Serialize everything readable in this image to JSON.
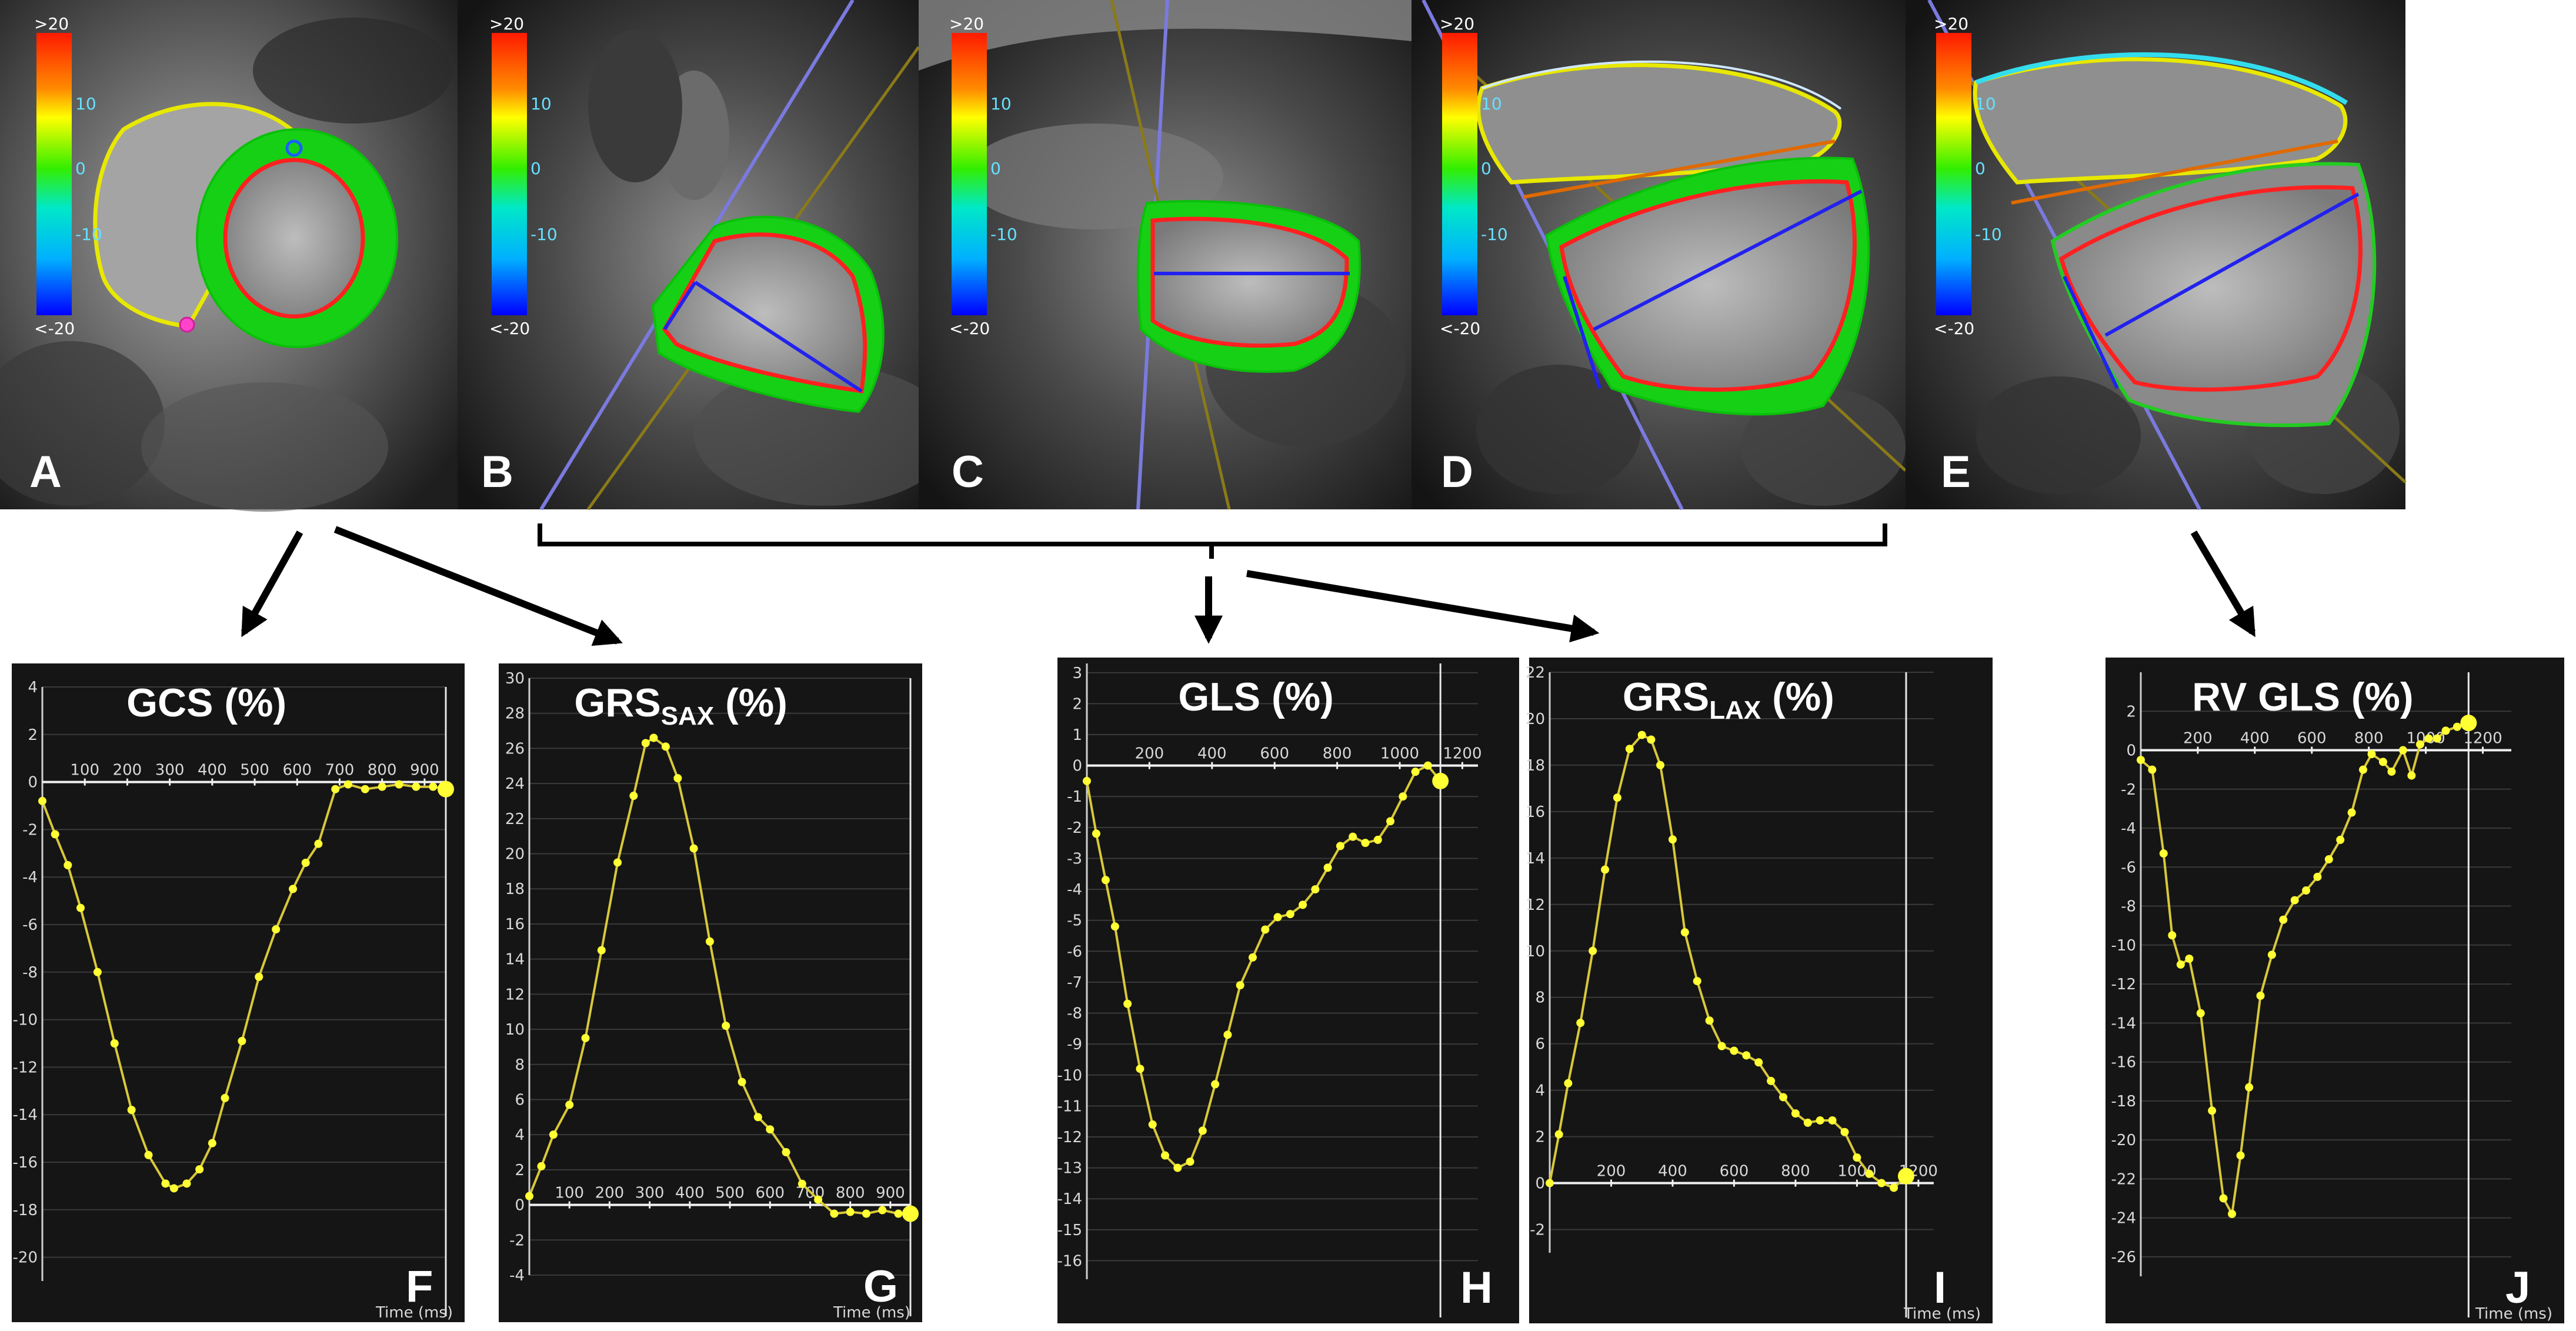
{
  "colorbar": {
    "top": ">20",
    "p10": "10",
    "zero": "0",
    "n10": "-10",
    "bottom": "<-20"
  },
  "panels": [
    {
      "letter": "A"
    },
    {
      "letter": "B"
    },
    {
      "letter": "C"
    },
    {
      "letter": "D"
    },
    {
      "letter": "E"
    }
  ],
  "colors": {
    "curve": "#d8c83a",
    "point": "#ffff33",
    "background": "#151515",
    "grid": "#3a3a3a",
    "arrow": "#000000"
  },
  "time_label": "Time (ms)",
  "chart_data": [
    {
      "type": "line",
      "letter": "F",
      "title": "GCS (%)",
      "title_sub": "",
      "xlabel": "Time (ms)",
      "xlim": [
        0,
        950
      ],
      "ylim": [
        -21,
        4
      ],
      "xticks": [
        100,
        200,
        300,
        400,
        500,
        600,
        700,
        800,
        900
      ],
      "yticks": [
        4,
        2,
        0,
        -2,
        -4,
        -6,
        -8,
        -10,
        -12,
        -14,
        -16,
        -18,
        -20
      ],
      "x": [
        0,
        30,
        60,
        90,
        130,
        170,
        210,
        250,
        290,
        310,
        340,
        370,
        400,
        430,
        470,
        510,
        550,
        590,
        620,
        650,
        690,
        720,
        760,
        800,
        840,
        880,
        920,
        950
      ],
      "y": [
        -0.8,
        -2.2,
        -3.5,
        -5.3,
        -8,
        -11,
        -13.8,
        -15.7,
        -16.9,
        -17.1,
        -16.9,
        -16.3,
        -15.2,
        -13.3,
        -10.9,
        -8.2,
        -6.2,
        -4.5,
        -3.4,
        -2.6,
        -0.3,
        -0.1,
        -0.3,
        -0.2,
        -0.1,
        -0.2,
        -0.2,
        -0.3
      ]
    },
    {
      "type": "line",
      "letter": "G",
      "title": "GRS",
      "title_sub": "SAX",
      "title_suffix": " (%)",
      "xlabel": "Time (ms)",
      "xlim": [
        0,
        950
      ],
      "ylim": [
        -4,
        30
      ],
      "xticks": [
        100,
        200,
        300,
        400,
        500,
        600,
        700,
        800,
        900
      ],
      "yticks": [
        30,
        28,
        26,
        24,
        22,
        20,
        18,
        16,
        14,
        12,
        10,
        8,
        6,
        4,
        2,
        0,
        -2,
        -4
      ],
      "x": [
        0,
        30,
        60,
        100,
        140,
        180,
        220,
        260,
        290,
        310,
        340,
        370,
        410,
        450,
        490,
        530,
        570,
        600,
        640,
        680,
        720,
        760,
        800,
        840,
        880,
        920,
        950
      ],
      "y": [
        0.5,
        2.2,
        4,
        5.7,
        9.5,
        14.5,
        19.5,
        23.3,
        26.3,
        26.6,
        26.1,
        24.3,
        20.3,
        15,
        10.2,
        7,
        5,
        4.3,
        3,
        1.2,
        0.3,
        -0.5,
        -0.4,
        -0.5,
        -0.3,
        -0.5,
        -0.5
      ]
    },
    {
      "type": "line",
      "letter": "H",
      "title": "GLS (%)",
      "title_sub": "",
      "xlabel": "",
      "xlim": [
        0,
        1250
      ],
      "ylim": [
        -16.6,
        3.3
      ],
      "xticks": [
        200,
        400,
        600,
        800,
        1000,
        1200
      ],
      "yticks": [
        3,
        2,
        1,
        0,
        -1,
        -2,
        -3,
        -4,
        -5,
        -6,
        -7,
        -8,
        -9,
        -10,
        -11,
        -12,
        -13,
        -14,
        -15,
        -16
      ],
      "x": [
        0,
        30,
        60,
        90,
        130,
        170,
        210,
        250,
        290,
        330,
        370,
        410,
        450,
        490,
        530,
        570,
        610,
        650,
        690,
        730,
        770,
        810,
        850,
        890,
        930,
        970,
        1010,
        1050,
        1090,
        1130
      ],
      "y": [
        -0.5,
        -2.2,
        -3.7,
        -5.2,
        -7.7,
        -9.8,
        -11.6,
        -12.6,
        -13,
        -12.8,
        -11.8,
        -10.3,
        -8.7,
        -7.1,
        -6.2,
        -5.3,
        -4.9,
        -4.8,
        -4.5,
        -4,
        -3.3,
        -2.6,
        -2.3,
        -2.5,
        -2.4,
        -1.8,
        -1,
        -0.2,
        0,
        -0.5
      ]
    },
    {
      "type": "line",
      "letter": "I",
      "title": "GRS",
      "title_sub": "LAX",
      "title_suffix": " (%)",
      "xlabel": "Time (ms)",
      "xlim": [
        0,
        1250
      ],
      "ylim": [
        -3,
        22
      ],
      "xticks": [
        200,
        400,
        600,
        800,
        1000,
        1200
      ],
      "yticks": [
        22,
        20,
        18,
        16,
        14,
        12,
        10,
        8,
        6,
        4,
        2,
        0,
        -2
      ],
      "x": [
        0,
        30,
        60,
        100,
        140,
        180,
        220,
        260,
        300,
        330,
        360,
        400,
        440,
        480,
        520,
        560,
        600,
        640,
        680,
        720,
        760,
        800,
        840,
        880,
        920,
        960,
        1000,
        1040,
        1080,
        1120,
        1160
      ],
      "y": [
        0,
        2.1,
        4.3,
        6.9,
        10,
        13.5,
        16.6,
        18.7,
        19.3,
        19.1,
        18,
        14.8,
        10.8,
        8.7,
        7,
        5.9,
        5.7,
        5.5,
        5.2,
        4.4,
        3.7,
        3,
        2.6,
        2.7,
        2.7,
        2.2,
        1.1,
        0.4,
        0,
        -0.2,
        0.3
      ]
    },
    {
      "type": "line",
      "letter": "J",
      "title": "RV GLS (%)",
      "title_sub": "",
      "xlabel": "Time (ms)",
      "xlim": [
        0,
        1300
      ],
      "ylim": [
        -27,
        4
      ],
      "xticks": [
        200,
        400,
        600,
        800,
        1000,
        1200
      ],
      "yticks": [
        2,
        0,
        -2,
        -4,
        -6,
        -8,
        -10,
        -12,
        -14,
        -16,
        -18,
        -20,
        -22,
        -24,
        -26
      ],
      "x": [
        0,
        40,
        80,
        110,
        140,
        170,
        210,
        250,
        290,
        320,
        350,
        380,
        420,
        460,
        500,
        540,
        580,
        620,
        660,
        700,
        740,
        780,
        810,
        850,
        880,
        920,
        950,
        980,
        1010,
        1040,
        1070,
        1110,
        1150
      ],
      "y": [
        -0.5,
        -1,
        -5.3,
        -9.5,
        -11,
        -10.7,
        -13.5,
        -18.5,
        -23,
        -23.8,
        -20.8,
        -17.3,
        -12.6,
        -10.5,
        -8.7,
        -7.7,
        -7.2,
        -6.5,
        -5.6,
        -4.6,
        -3.2,
        -1,
        -0.2,
        -0.6,
        -1.1,
        0,
        -1.3,
        0.3,
        0.6,
        0.6,
        1,
        1.2,
        1.4
      ]
    }
  ]
}
